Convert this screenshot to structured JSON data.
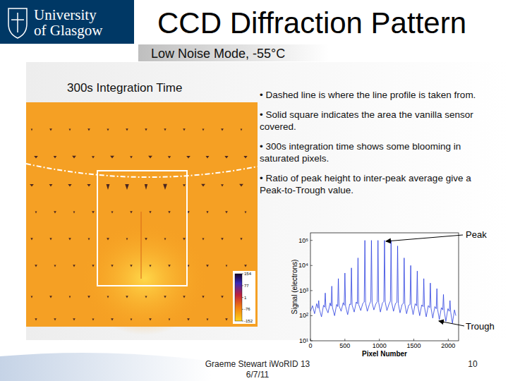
{
  "header": {
    "logo": [
      "University",
      "of Glasgow"
    ],
    "title": "CCD Diffraction Pattern",
    "subtitle": "Low Noise Mode, -55°C"
  },
  "image_caption": "300s Integration Time",
  "colorbar": {
    "range": [
      -152,
      154
    ],
    "ticks": [
      154,
      77,
      1,
      -76,
      -152
    ]
  },
  "bullets": [
    "• Dashed line is where the line profile is taken from.",
    "• Solid square indicates the area the vanilla sensor covered.",
    "• 300s integration time shows some blooming in saturated pixels.",
    "• Ratio of peak height to inter-peak average give a Peak-to-Trough value."
  ],
  "footer": {
    "author": "Graeme Stewart iWoRID 13",
    "date": "6/7/11",
    "page": 10
  },
  "chart_data": {
    "type": "line",
    "xlabel": "Pixel Number",
    "ylabel": "Signal (electrons)",
    "annotations": [
      "Peak",
      "Trough"
    ],
    "color": "#2b3fe0",
    "log": "y",
    "grid": false,
    "xlim": [
      0,
      2150
    ],
    "xticks": [
      0,
      500,
      1000,
      1500,
      2000
    ],
    "ylim": [
      10,
      200000
    ],
    "yticks": [
      {
        "value": 10,
        "label": "10¹"
      },
      {
        "value": 100,
        "label": "10²"
      },
      {
        "value": 1000,
        "label": "10³"
      },
      {
        "value": 10000,
        "label": "10⁴"
      },
      {
        "value": 100000,
        "label": "10⁵"
      }
    ],
    "x": [
      0,
      30,
      60,
      90,
      110,
      120,
      130,
      160,
      190,
      205,
      215,
      225,
      255,
      285,
      300,
      310,
      320,
      350,
      380,
      395,
      405,
      415,
      445,
      475,
      490,
      500,
      510,
      540,
      570,
      585,
      595,
      605,
      635,
      665,
      680,
      690,
      700,
      730,
      760,
      780,
      790,
      800,
      825,
      855,
      875,
      885,
      895,
      920,
      950,
      970,
      980,
      990,
      1015,
      1045,
      1065,
      1075,
      1085,
      1110,
      1140,
      1160,
      1170,
      1180,
      1205,
      1235,
      1255,
      1265,
      1275,
      1300,
      1330,
      1350,
      1360,
      1370,
      1395,
      1425,
      1445,
      1455,
      1465,
      1490,
      1520,
      1540,
      1550,
      1560,
      1585,
      1615,
      1635,
      1645,
      1655,
      1680,
      1710,
      1730,
      1740,
      1750,
      1775,
      1805,
      1825,
      1835,
      1845,
      1870,
      1900,
      1920,
      1930,
      1940,
      1965,
      1995,
      2015,
      2025,
      2035,
      2060,
      2090,
      2110
    ],
    "values": [
      150,
      250,
      120,
      300,
      200,
      400,
      180,
      90,
      260,
      220,
      800,
      200,
      130,
      320,
      240,
      1500,
      210,
      100,
      280,
      230,
      3000,
      250,
      150,
      330,
      260,
      5000,
      240,
      110,
      290,
      280,
      8000,
      260,
      140,
      350,
      300,
      20000,
      280,
      160,
      310,
      350,
      100000,
      320,
      150,
      280,
      380,
      100000,
      330,
      170,
      300,
      360,
      100000,
      340,
      140,
      320,
      370,
      100000,
      350,
      160,
      290,
      380,
      100000,
      330,
      150,
      310,
      340,
      60000,
      300,
      130,
      280,
      310,
      20000,
      290,
      120,
      260,
      280,
      10000,
      260,
      110,
      300,
      250,
      6000,
      240,
      100,
      270,
      230,
      3000,
      220,
      90,
      250,
      210,
      2000,
      200,
      80,
      230,
      190,
      1200,
      180,
      70,
      210,
      170,
      700,
      160,
      60,
      190,
      150,
      400,
      140,
      50,
      170,
      100
    ]
  }
}
